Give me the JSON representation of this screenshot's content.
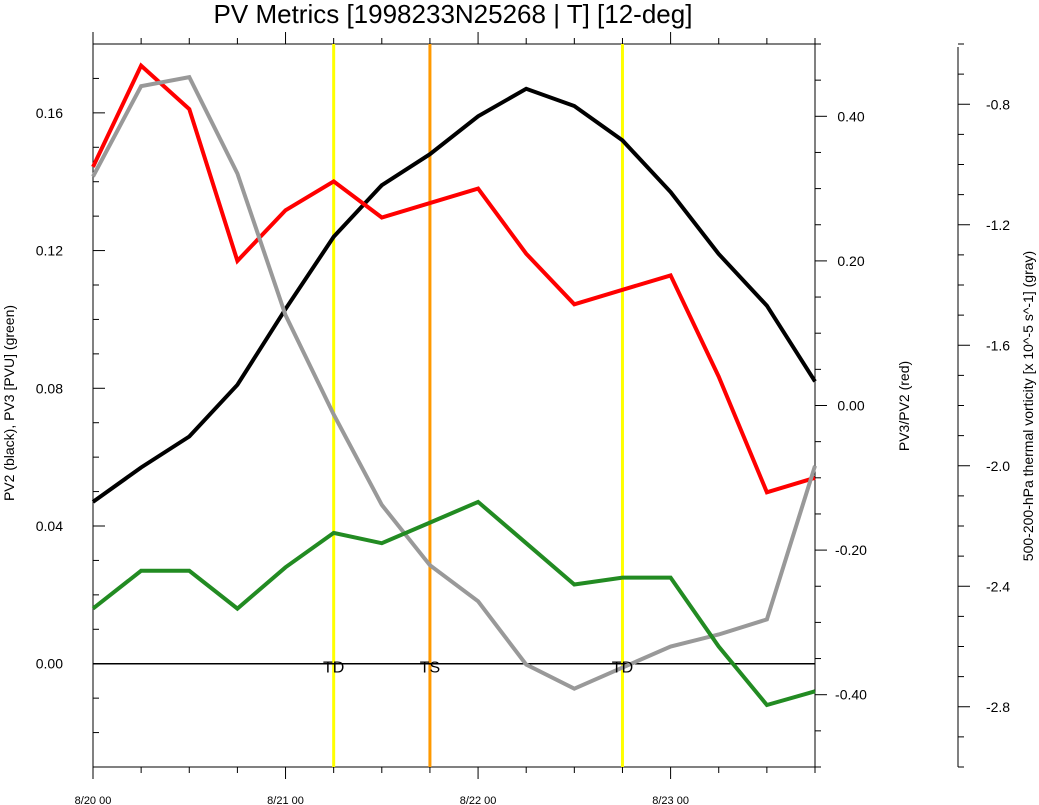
{
  "chart_data": {
    "type": "line",
    "title": "PV Metrics [1998233N25268 | T] [12-deg]",
    "x_tick_labels": [
      "8/20 00",
      "8/21 00",
      "8/22 00",
      "8/23 00"
    ],
    "x_tick_positions": [
      0,
      1,
      2,
      3
    ],
    "xlim": [
      0,
      3.75
    ],
    "x_step": 0.25,
    "axes": {
      "left": {
        "label": "PV2 (black), PV3 [PVU] (green)",
        "ylim": [
          -0.03,
          0.18
        ],
        "ticks": [
          0.0,
          0.04,
          0.08,
          0.12,
          0.16
        ],
        "tick_labels": [
          "0.00",
          "0.04",
          "0.08",
          "0.12",
          "0.16"
        ]
      },
      "right": {
        "label": "PV3/PV2 (red)",
        "ylim": [
          -0.5,
          0.5
        ],
        "ticks": [
          -0.4,
          -0.2,
          0.0,
          0.2,
          0.4
        ],
        "tick_labels": [
          "-0.40",
          "-0.20",
          "0.00",
          "0.20",
          "0.40"
        ]
      },
      "far_right": {
        "label": "500-200-hPa thermal vorticity [x 10^-5 s^-1] (gray)",
        "ylim": [
          -3.0,
          -0.6
        ],
        "ticks": [
          -2.8,
          -2.4,
          -2.0,
          -1.6,
          -1.2,
          -0.8
        ],
        "tick_labels": [
          "-2.8",
          "-2.4",
          "-2.0",
          "-1.6",
          "-1.2",
          "-0.8"
        ]
      }
    },
    "series": [
      {
        "axis": "left",
        "color": "#000000",
        "values": [
          0.047,
          0.057,
          0.066,
          0.081,
          0.103,
          0.124,
          0.139,
          0.148,
          0.159,
          0.167,
          0.162,
          0.152,
          0.137,
          0.119,
          0.104,
          0.082
        ]
      },
      {
        "axis": "left",
        "color": "#228b22",
        "values": [
          0.016,
          0.027,
          0.027,
          0.016,
          0.028,
          0.038,
          0.035,
          0.041,
          0.047,
          0.035,
          0.023,
          0.025,
          0.025,
          0.005,
          -0.012,
          -0.008
        ]
      },
      {
        "axis": "right",
        "color": "#ff0000",
        "values": [
          0.33,
          0.47,
          0.41,
          0.2,
          0.27,
          0.31,
          0.26,
          0.28,
          0.3,
          0.21,
          0.14,
          0.16,
          0.18,
          0.04,
          -0.12,
          -0.1
        ]
      },
      {
        "axis": "far_right",
        "color": "#999999",
        "values": [
          -1.04,
          -0.74,
          -0.71,
          -1.03,
          -1.5,
          -1.83,
          -2.13,
          -2.33,
          -2.45,
          -2.66,
          -2.74,
          -2.67,
          -2.6,
          -2.56,
          -2.51,
          -2.0
        ]
      }
    ],
    "reference_lines": [
      {
        "axis": "left",
        "y": 0.0,
        "color": "#000000"
      }
    ],
    "events": [
      {
        "x": 1.25,
        "label": "TD",
        "color": "#ffff00"
      },
      {
        "x": 1.75,
        "label": "TS",
        "color": "#ff9900"
      },
      {
        "x": 2.75,
        "label": "TD",
        "color": "#ffff00"
      }
    ]
  }
}
